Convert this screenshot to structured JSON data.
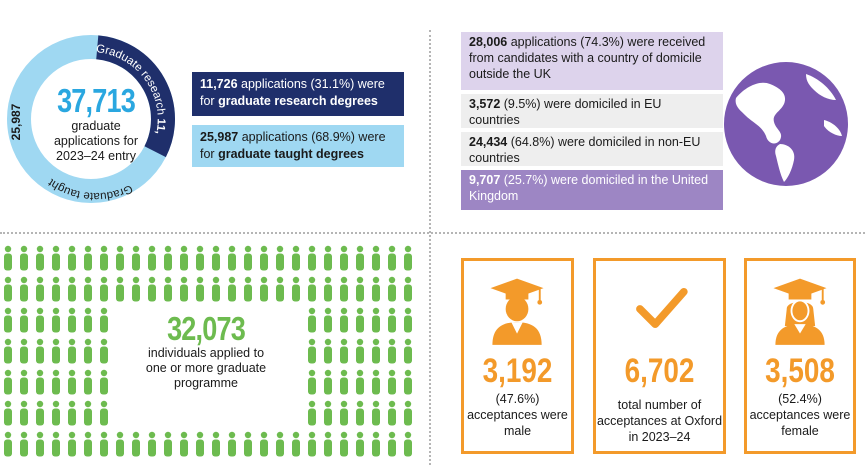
{
  "applications": {
    "total": "37,713",
    "total_caption": "graduate applications for 2023–24 entry",
    "ring_research_label": "Graduate research",
    "ring_research_value": "11,726",
    "ring_taught_label": "Graduate taught",
    "ring_taught_value": "25,987",
    "research_share": 0.311,
    "research_num": "11,726",
    "research_text": " applications (31.1%) were for ",
    "research_bold": "graduate research degrees",
    "taught_num": "25,987",
    "taught_text": " applications (68.9%) were for ",
    "taught_bold": "graduate taught degrees",
    "colors": {
      "research": "#1f2f6b",
      "taught": "#9fd8f2",
      "accent": "#2aa7e0"
    }
  },
  "domicile": {
    "overseas_num": "28,006",
    "overseas_text": " applications (74.3%) were received from candidates with a country of domicile outside the UK",
    "eu_num": "3,572",
    "eu_text": " (9.5%) were domiciled in EU countries",
    "noneu_num": "24,434",
    "noneu_text": " (64.8%) were domiciled in non-EU countries",
    "uk_num": "9,707",
    "uk_text": " (25.7%) were domiciled in the United Kingdom",
    "globe_icon": "globe-icon",
    "colors": {
      "purple": "#7a58b0",
      "light_purple": "#ddd3ec"
    }
  },
  "individuals": {
    "count": "32,073",
    "caption": "individuals applied to one or more graduate programme",
    "icon": "person-icon",
    "color": "#6dbb4f"
  },
  "acceptances": {
    "male_value": "3,192",
    "male_text": "(47.6%) acceptances were male",
    "total_value": "6,702",
    "total_text": "total number of acceptances at Oxford in 2023–24",
    "female_value": "3,508",
    "female_text": "(52.4%) acceptances were female",
    "icons": [
      "graduate-male-icon",
      "checkmark-icon",
      "graduate-female-icon"
    ],
    "color": "#f39a2a"
  }
}
